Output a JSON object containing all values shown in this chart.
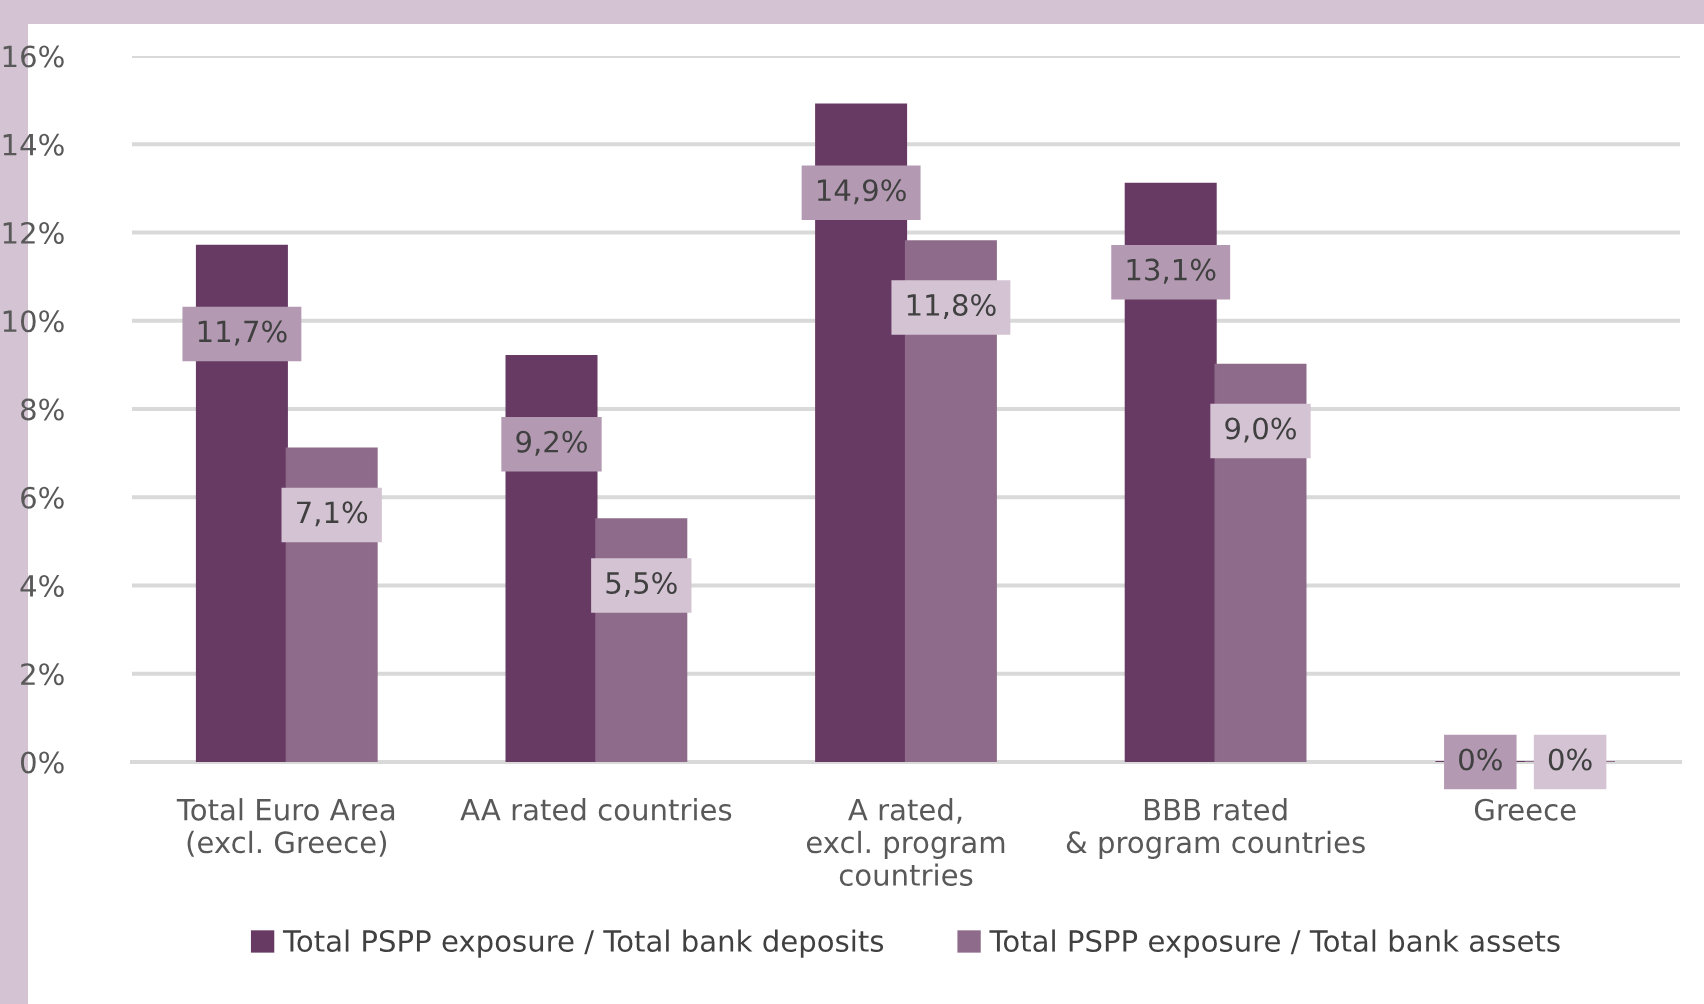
{
  "chart_data": {
    "type": "bar",
    "categories": [
      "Total Euro Area\n(excl. Greece)",
      "AA rated countries",
      "A rated,\nexcl. program\ncountries",
      "BBB rated\n& program countries",
      "Greece"
    ],
    "series": [
      {
        "name": "Total PSPP exposure / Total bank deposits",
        "color": "#673a63",
        "values": [
          11.7,
          9.2,
          14.9,
          13.1,
          0
        ],
        "value_labels": [
          "11,7%",
          "9,2%",
          "14,9%",
          "13,1%",
          "0%"
        ]
      },
      {
        "name": "Total PSPP exposure / Total bank assets",
        "color": "#8e6b8a",
        "values": [
          7.1,
          5.5,
          11.8,
          9.0,
          0
        ],
        "value_labels": [
          "7,1%",
          "5,5%",
          "11,8%",
          "9,0%",
          "0%"
        ]
      }
    ],
    "ylim": [
      0,
      16
    ],
    "yticks": [
      {
        "value": 0,
        "label": "0%"
      },
      {
        "value": 2,
        "label": "2%"
      },
      {
        "value": 4,
        "label": "4%"
      },
      {
        "value": 6,
        "label": "6%"
      },
      {
        "value": 8,
        "label": "8%"
      },
      {
        "value": 10,
        "label": "10%"
      },
      {
        "value": 12,
        "label": "12%"
      },
      {
        "value": 14,
        "label": "14%"
      },
      {
        "value": 16,
        "label": "16%"
      }
    ],
    "grid": "y",
    "legend": "bottom"
  }
}
